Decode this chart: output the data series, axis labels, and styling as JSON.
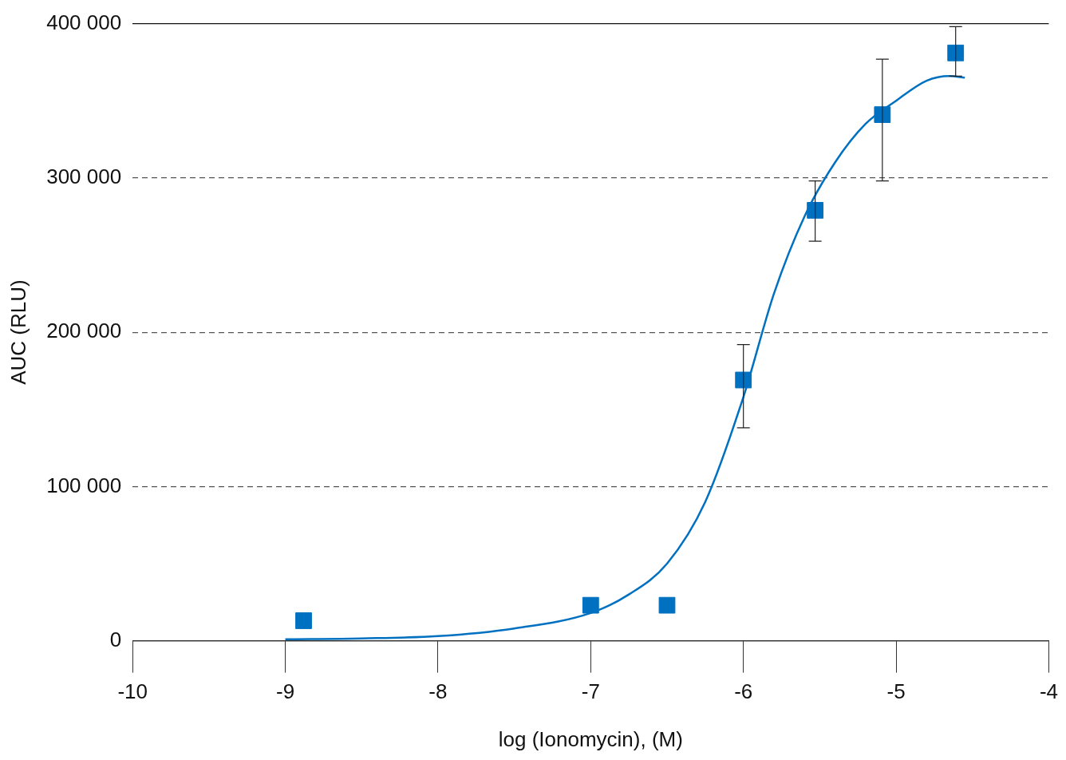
{
  "chart_data": {
    "type": "scatter",
    "xlabel": "log (Ionomycin), (M)",
    "ylabel": "AUC (RLU)",
    "xlim": [
      -10,
      -4
    ],
    "xticks": [
      -10,
      -9,
      -8,
      -7,
      -6,
      -5,
      -4
    ],
    "ylim": [
      0,
      400000
    ],
    "yticks": [
      {
        "value": 0,
        "label": "0"
      },
      {
        "value": 100000,
        "label": "100 000"
      },
      {
        "value": 200000,
        "label": "200 000"
      },
      {
        "value": 300000,
        "label": "300 000"
      },
      {
        "value": 400000,
        "label": "400 000"
      }
    ],
    "grid": "y",
    "legend": false,
    "series": [
      {
        "color": "#0070c0",
        "marker": "square",
        "x": [
          -8.88,
          -7.0,
          -6.5,
          -6.0,
          -5.53,
          -5.09,
          -4.61
        ],
        "values": [
          13000,
          23000,
          23000,
          169000,
          279000,
          341000,
          381000
        ],
        "errors": [
          null,
          null,
          null,
          [
            138000,
            192000
          ],
          [
            259000,
            298000
          ],
          [
            298000,
            377000
          ],
          [
            366000,
            398000
          ]
        ]
      },
      {
        "type": "line",
        "color": "#0070c0",
        "marker": "none",
        "line_style": "solid",
        "x": [
          -9,
          -8.5,
          -8,
          -7.5,
          -7,
          -6.75,
          -6.5,
          -6.25,
          -6,
          -5.8,
          -5.6,
          -5.4,
          -5.2,
          -5,
          -4.8,
          -4.65,
          -4.55
        ],
        "values": [
          1000,
          1500,
          3000,
          8000,
          18000,
          30000,
          50000,
          90000,
          158000,
          225000,
          275000,
          310000,
          335000,
          350000,
          363000,
          366000,
          365000
        ]
      }
    ]
  }
}
